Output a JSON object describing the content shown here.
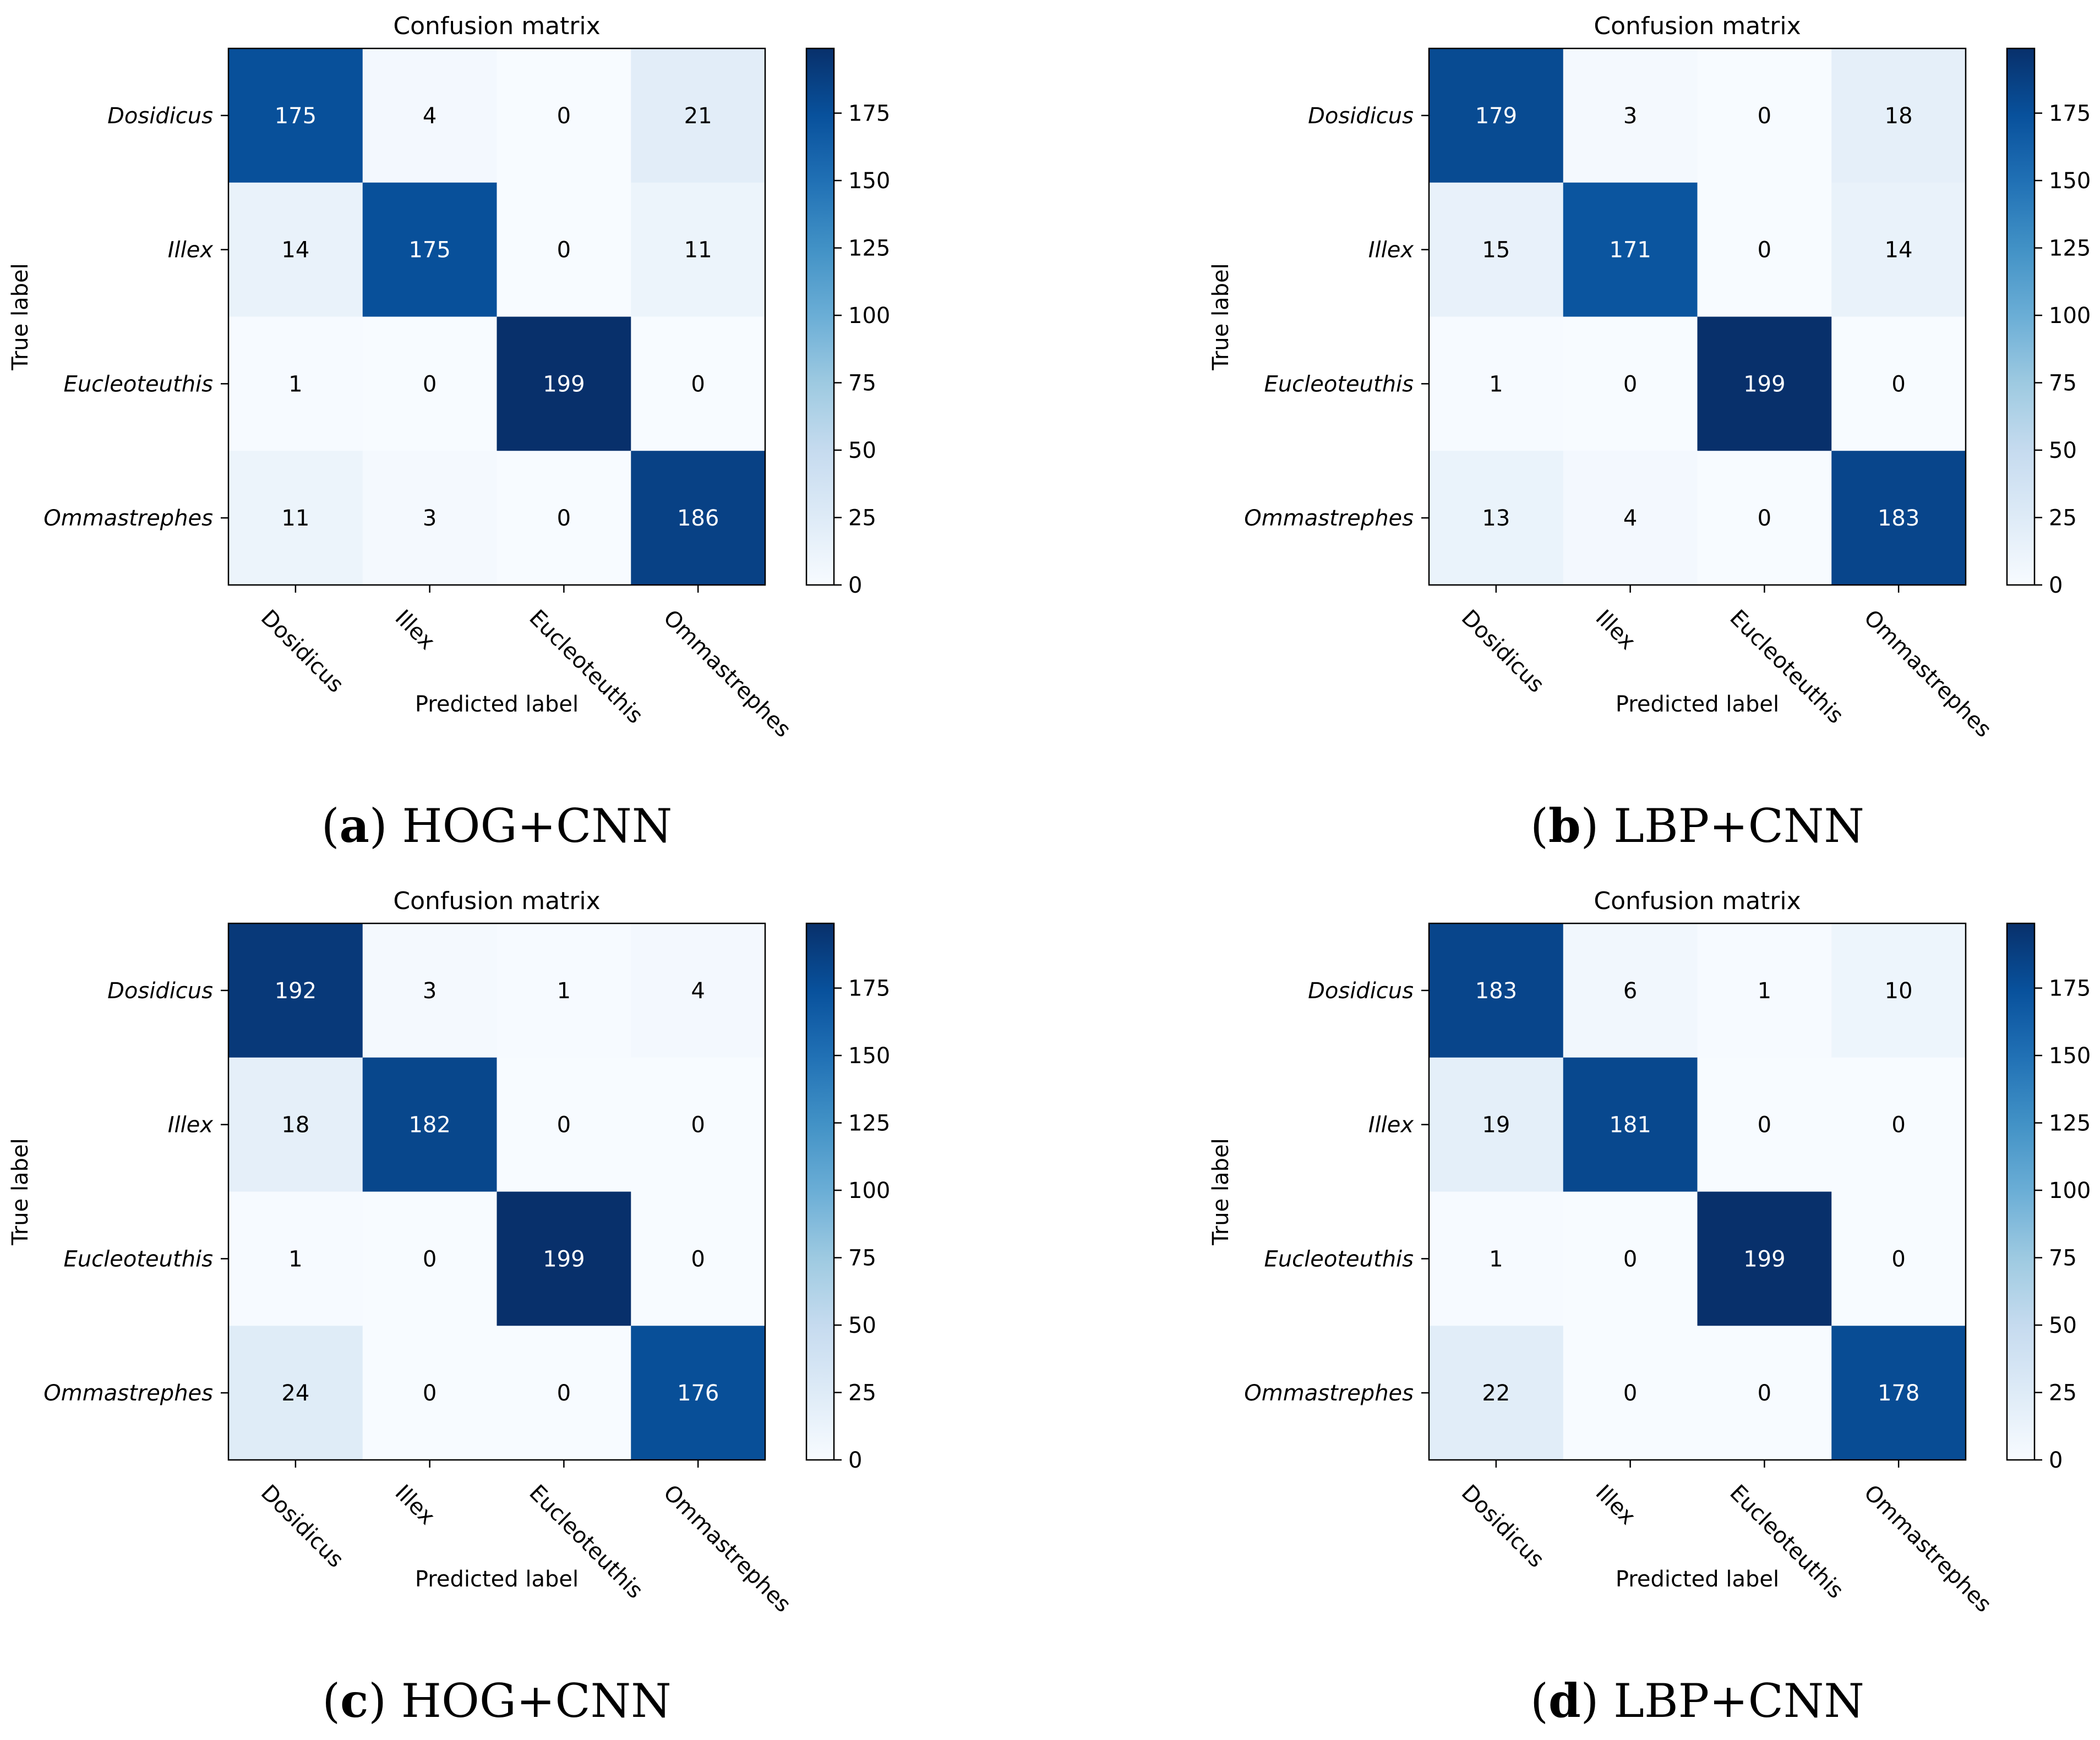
{
  "chart_data": [
    {
      "type": "heatmap",
      "panel": "a",
      "caption_letter": "a",
      "caption_text": "HOG+CNN",
      "title": "Confusion matrix",
      "xlabel": "Predicted label",
      "ylabel": "True label",
      "categories": [
        "Dosidicus",
        "Illex",
        "Eucleoteuthis",
        "Ommastrephes"
      ],
      "matrix": [
        [
          175,
          4,
          0,
          21
        ],
        [
          14,
          175,
          0,
          11
        ],
        [
          1,
          0,
          199,
          0
        ],
        [
          11,
          3,
          0,
          186
        ]
      ],
      "colorbar_ticks": [
        0,
        25,
        50,
        75,
        100,
        125,
        150,
        175
      ],
      "vmin": 0,
      "vmax": 199
    },
    {
      "type": "heatmap",
      "panel": "b",
      "caption_letter": "b",
      "caption_text": "LBP+CNN",
      "title": "Confusion matrix",
      "xlabel": "Predicted label",
      "ylabel": "True label",
      "categories": [
        "Dosidicus",
        "Illex",
        "Eucleoteuthis",
        "Ommastrephes"
      ],
      "matrix": [
        [
          179,
          3,
          0,
          18
        ],
        [
          15,
          171,
          0,
          14
        ],
        [
          1,
          0,
          199,
          0
        ],
        [
          13,
          4,
          0,
          183
        ]
      ],
      "colorbar_ticks": [
        0,
        25,
        50,
        75,
        100,
        125,
        150,
        175
      ],
      "vmin": 0,
      "vmax": 199
    },
    {
      "type": "heatmap",
      "panel": "c",
      "caption_letter": "c",
      "caption_text": "HOG+CNN",
      "title": "Confusion matrix",
      "xlabel": "Predicted label",
      "ylabel": "True label",
      "categories": [
        "Dosidicus",
        "Illex",
        "Eucleoteuthis",
        "Ommastrephes"
      ],
      "matrix": [
        [
          192,
          3,
          1,
          4
        ],
        [
          18,
          182,
          0,
          0
        ],
        [
          1,
          0,
          199,
          0
        ],
        [
          24,
          0,
          0,
          176
        ]
      ],
      "colorbar_ticks": [
        0,
        25,
        50,
        75,
        100,
        125,
        150,
        175
      ],
      "vmin": 0,
      "vmax": 199
    },
    {
      "type": "heatmap",
      "panel": "d",
      "caption_letter": "d",
      "caption_text": "LBP+CNN",
      "title": "Confusion matrix",
      "xlabel": "Predicted label",
      "ylabel": "True label",
      "categories": [
        "Dosidicus",
        "Illex",
        "Eucleoteuthis",
        "Ommastrephes"
      ],
      "matrix": [
        [
          183,
          6,
          1,
          10
        ],
        [
          19,
          181,
          0,
          0
        ],
        [
          1,
          0,
          199,
          0
        ],
        [
          22,
          0,
          0,
          178
        ]
      ],
      "colorbar_ticks": [
        0,
        25,
        50,
        75,
        100,
        125,
        150,
        175
      ],
      "vmin": 0,
      "vmax": 199
    }
  ]
}
